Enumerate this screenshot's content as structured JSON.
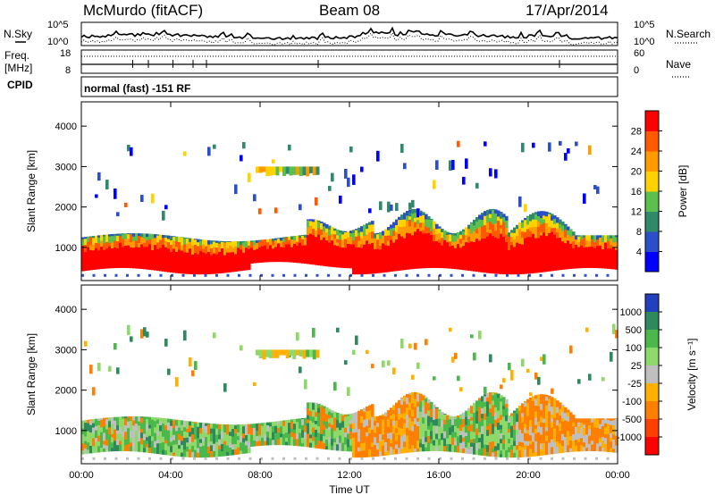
{
  "header": {
    "title": "McMurdo (fitACF)",
    "beam": "Beam 08",
    "date": "17/Apr/2014"
  },
  "aux_panels": {
    "noise": {
      "left_label": "N.Sky",
      "right_label": "N.Search",
      "left_ticks": [
        "10^5",
        "10^0"
      ],
      "right_ticks": [
        "10^5",
        "10^0"
      ]
    },
    "freq": {
      "left_label_1": "Freq.",
      "left_label_2": "[MHz]",
      "right_label": "Nave",
      "left_ticks": [
        "18",
        "8"
      ],
      "right_ticks": [
        "60",
        "0"
      ]
    },
    "cpid": {
      "label": "CPID",
      "text": "normal (fast) -151 RF"
    }
  },
  "chart_data": [
    {
      "type": "heatmap",
      "name": "power",
      "ylabel": "Slant Range [km]",
      "xlabel": "",
      "ylim": [
        180,
        4600
      ],
      "xlim": [
        0,
        24
      ],
      "y_ticks": [
        1000,
        2000,
        3000,
        4000
      ],
      "colorbar": {
        "label": "Power [dB]",
        "ticks": [
          "4",
          "8",
          "12",
          "16",
          "20",
          "24",
          "28"
        ],
        "colors": [
          "#0000ff",
          "#2a4fc8",
          "#2f8a6a",
          "#5dbf4d",
          "#ffd200",
          "#ff9a00",
          "#ff5a00",
          "#ff0000"
        ]
      }
    },
    {
      "type": "heatmap",
      "name": "velocity",
      "ylabel": "Slant Range [km]",
      "xlabel": "Time UT",
      "ylim": [
        180,
        4600
      ],
      "xlim": [
        0,
        24
      ],
      "y_ticks": [
        1000,
        2000,
        3000,
        4000
      ],
      "x_ticks": [
        "00:00",
        "04:00",
        "08:00",
        "12:00",
        "16:00",
        "20:00",
        "00:00"
      ],
      "colorbar": {
        "label": "Velocity [m s⁻¹]",
        "ticks": [
          "1000",
          "500",
          "100",
          "25",
          "-25",
          "-100",
          "-500",
          "-1000"
        ],
        "colors": [
          "#2040c0",
          "#2e8a5c",
          "#4ab84a",
          "#8fd86a",
          "#bfbfbf",
          "#ffb000",
          "#ff8000",
          "#ff4000",
          "#ff0000"
        ]
      }
    }
  ],
  "colors": {
    "gs_gray": "#bfbfbf",
    "axis": "#000000"
  }
}
